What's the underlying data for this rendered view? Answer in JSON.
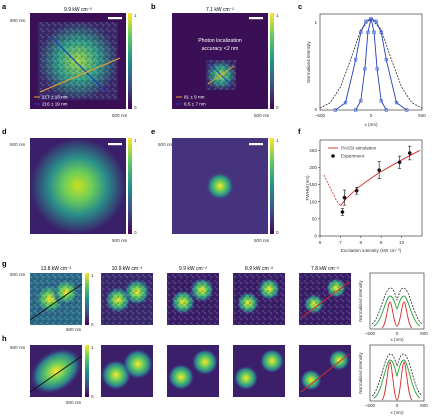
{
  "panel_letters": [
    "a",
    "b",
    "c",
    "d",
    "e",
    "f",
    "g",
    "h"
  ],
  "colors": {
    "viridis_low": "#3b0f55",
    "viridis_mid": "#25808e",
    "viridis_high": "#fde725",
    "line_blue": "#1f3fbf",
    "line_orange": "#f0a030",
    "red": "#d62a2a",
    "green": "#27a33a"
  },
  "panel_a": {
    "title": "9.9 kW cm⁻²",
    "legend": [
      "217 ± 18 nm",
      "216 ± 19 nm"
    ],
    "axis_top": "500 nm",
    "axis_right": "500 nm",
    "cbar_max": "1",
    "cbar_min": "0"
  },
  "panel_b": {
    "title": "7.1 kW cm⁻²",
    "annotation_1": "Photon localization",
    "annotation_2": "accuracy <2 nm",
    "legend": [
      "81 ± 9 nm",
      "6.5 ± 7 nm"
    ],
    "axis_right": "500 nm",
    "cbar_max": "1",
    "cbar_min": "0"
  },
  "panel_c": {
    "ylabel": "Normalized intensity",
    "xlabel": "x (nm)",
    "xticks": [
      "–500",
      "0",
      "500"
    ],
    "yticks": [
      "0",
      "1"
    ]
  },
  "panel_d": {
    "axis_top": "500 nm",
    "axis_right": "500 nm",
    "cbar_max": "1",
    "cbar_min": "0"
  },
  "panel_e": {
    "axis_top": "500 nm",
    "axis_right": "500 nm",
    "cbar_max": "1",
    "cbar_min": "0"
  },
  "panel_f": {
    "legend": [
      "PASSI simulation",
      "Experiment"
    ],
    "ylabel": "FWHM (nm)",
    "xlabel": "Excitation intensity (kW cm⁻²)"
  },
  "panel_g": {
    "titles": [
      "13.8 kW cm⁻²",
      "10.9 kW cm⁻²",
      "9.9 kW cm⁻²",
      "8.9 kW cm⁻²",
      "7.8 kW cm⁻²"
    ],
    "axis_top": "500 nm",
    "axis_right": "500 nm",
    "cbar_max": "1",
    "cbar_min": "0",
    "profile_ylabel": "Normalized intensity",
    "profile_xlabel": "x (nm)",
    "profile_xticks": [
      "–500",
      "0",
      "500"
    ],
    "profile_yticks": [
      "0",
      "1"
    ]
  },
  "panel_h": {
    "axis_top": "500 nm",
    "axis_right": "500 nm",
    "cbar_max": "1",
    "cbar_min": "0",
    "profile_ylabel": "Normalized intensity",
    "profile_xlabel": "x (nm)",
    "profile_xticks": [
      "–500",
      "0",
      "500"
    ],
    "profile_yticks": [
      "0",
      "1"
    ]
  },
  "chart_data": [
    {
      "panel": "c",
      "type": "line",
      "xlabel": "x (nm)",
      "ylabel": "Normalized intensity",
      "xlim": [
        -500,
        500
      ],
      "ylim": [
        0,
        1.05
      ],
      "series": [
        {
          "style": "dashed",
          "x": [
            -500,
            -400,
            -300,
            -200,
            -100,
            0,
            100,
            200,
            300,
            400,
            500
          ],
          "values": [
            0.02,
            0.08,
            0.25,
            0.55,
            0.88,
            1.0,
            0.88,
            0.55,
            0.25,
            0.08,
            0.02
          ]
        },
        {
          "style": "solid-broad",
          "x": [
            -350,
            -250,
            -150,
            -100,
            -50,
            0,
            50,
            100,
            150,
            250,
            350
          ],
          "values": [
            0.0,
            0.08,
            0.55,
            0.85,
            0.97,
            1.0,
            0.97,
            0.85,
            0.55,
            0.08,
            0.0
          ]
        },
        {
          "style": "solid-narrow",
          "x": [
            -150,
            -100,
            -60,
            -30,
            0,
            30,
            60,
            100,
            150
          ],
          "values": [
            0.0,
            0.1,
            0.45,
            0.85,
            1.0,
            0.85,
            0.45,
            0.1,
            0.0
          ]
        }
      ]
    },
    {
      "panel": "f",
      "type": "scatter",
      "xlabel": "Excitation intensity (kW cm⁻²)",
      "ylabel": "FWHM (nm)",
      "xticks": [
        "6",
        "7",
        "8",
        "9",
        "10"
      ],
      "yticks": [
        "0",
        "50",
        "100",
        "150",
        "200",
        "250"
      ],
      "xlim": [
        6,
        11
      ],
      "ylim": [
        0,
        280
      ],
      "series": [
        {
          "name": "Experiment",
          "x": [
            7.1,
            7.2,
            7.8,
            8.9,
            9.9,
            10.4
          ],
          "values": [
            70,
            112,
            132,
            192,
            215,
            242
          ],
          "err": [
            10,
            22,
            10,
            25,
            18,
            20
          ]
        },
        {
          "name": "PASSI simulation",
          "x": [
            6.2,
            6.5,
            6.8,
            7.0,
            7.3,
            7.8,
            8.3,
            8.9,
            9.5,
            10.2,
            10.9
          ],
          "values": [
            178,
            140,
            105,
            88,
            110,
            138,
            160,
            185,
            205,
            228,
            250
          ]
        }
      ]
    }
  ]
}
